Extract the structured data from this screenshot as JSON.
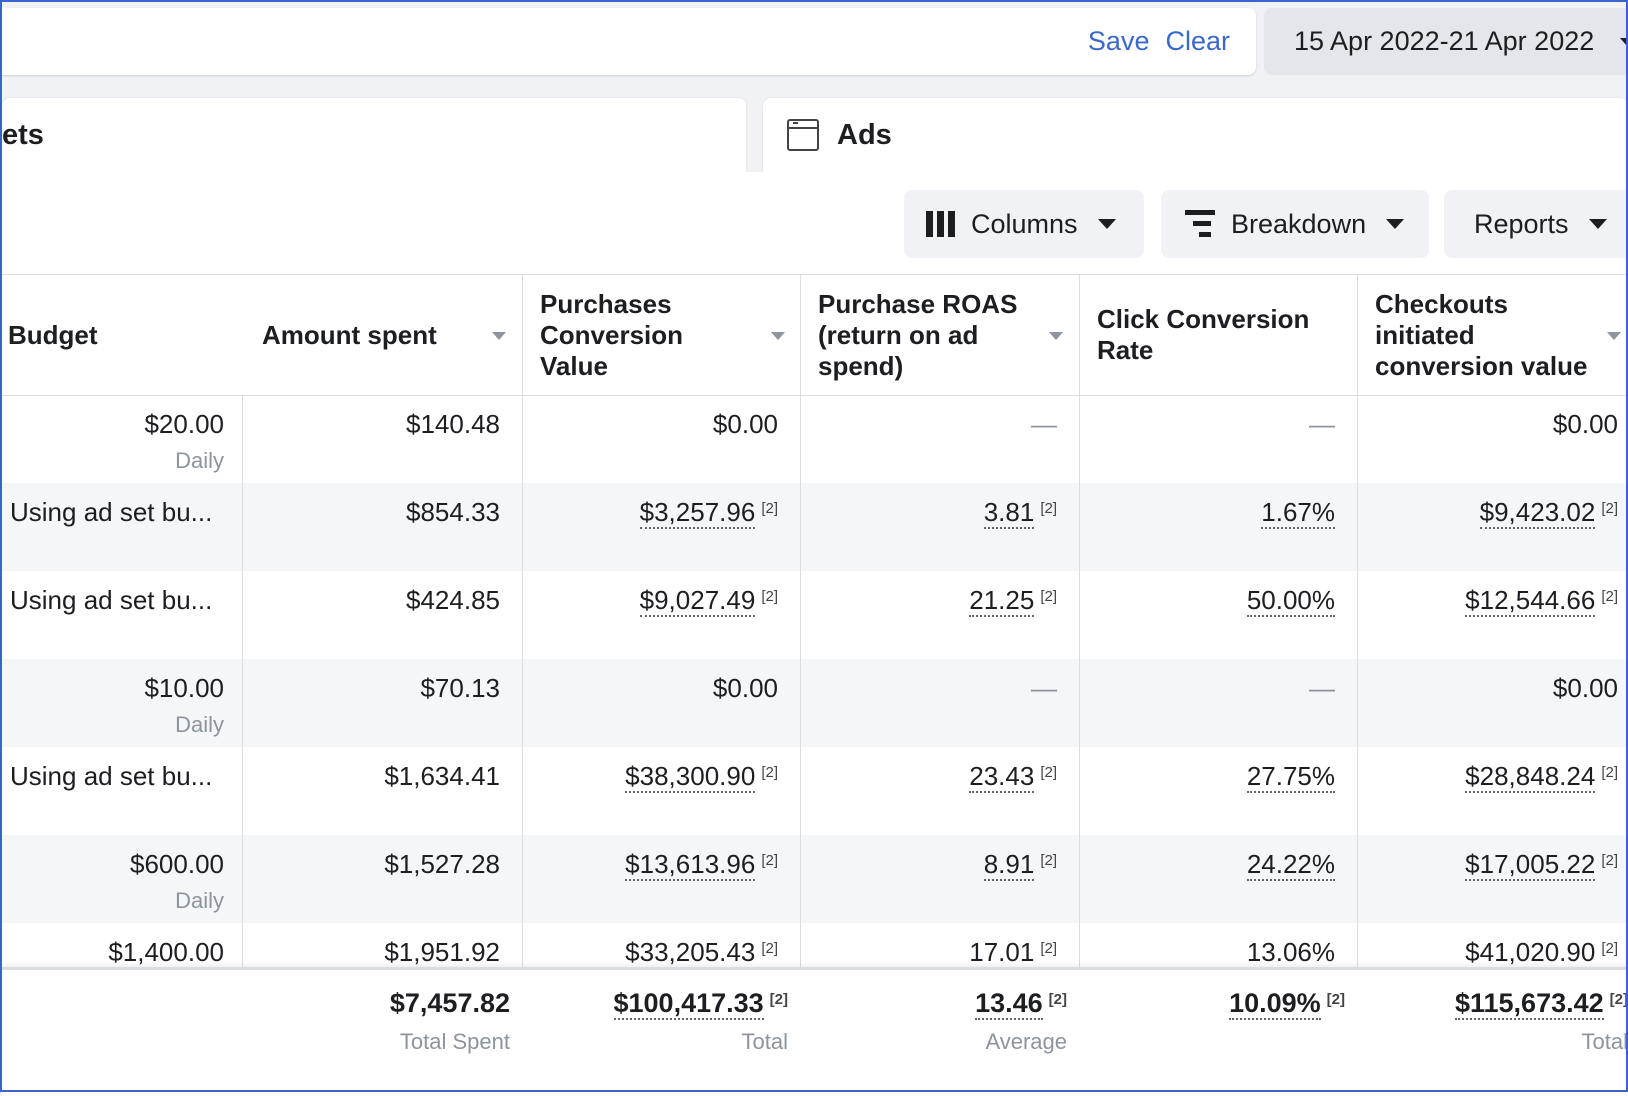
{
  "header": {
    "save_label": "Save",
    "clear_label": "Clear",
    "date_range": "15 Apr 2022-21 Apr 2022"
  },
  "tabs": {
    "adsets_label": "ets",
    "ads_label": "Ads"
  },
  "toolbar": {
    "columns_label": "Columns",
    "breakdown_label": "Breakdown",
    "reports_label": "Reports"
  },
  "table": {
    "headers": {
      "budget": "Budget",
      "amount_spent": "Amount spent",
      "purchases_value": "Purchases Conversion Value",
      "roas": "Purchase ROAS (return on ad spend)",
      "ccr": "Click Conversion Rate",
      "checkouts_value": "Checkouts initiated conversion value"
    },
    "footnote": "[2]",
    "rows": [
      {
        "budget": "$20.00",
        "budget_sub": "Daily",
        "spent": "$140.48",
        "purchases": "$0.00",
        "roas": "—",
        "ccr": "—",
        "checkouts": "$0.00"
      },
      {
        "budget": "Using ad set bu...",
        "budget_sub": "",
        "spent": "$854.33",
        "purchases": "$3,257.96",
        "roas": "3.81",
        "ccr": "1.67%",
        "checkouts": "$9,423.02"
      },
      {
        "budget": "Using ad set bu...",
        "budget_sub": "",
        "spent": "$424.85",
        "purchases": "$9,027.49",
        "roas": "21.25",
        "ccr": "50.00%",
        "checkouts": "$12,544.66"
      },
      {
        "budget": "$10.00",
        "budget_sub": "Daily",
        "spent": "$70.13",
        "purchases": "$0.00",
        "roas": "—",
        "ccr": "—",
        "checkouts": "$0.00"
      },
      {
        "budget": "Using ad set bu...",
        "budget_sub": "",
        "spent": "$1,634.41",
        "purchases": "$38,300.90",
        "roas": "23.43",
        "ccr": "27.75%",
        "checkouts": "$28,848.24"
      },
      {
        "budget": "$600.00",
        "budget_sub": "Daily",
        "spent": "$1,527.28",
        "purchases": "$13,613.96",
        "roas": "8.91",
        "ccr": "24.22%",
        "checkouts": "$17,005.22"
      },
      {
        "budget": "$1,400.00",
        "budget_sub": "",
        "spent": "$1,951.92",
        "purchases": "$33,205.43",
        "roas": "17.01",
        "ccr": "13.06%",
        "checkouts": "$41,020.90"
      }
    ],
    "totals": {
      "spent": "$7,457.82",
      "spent_sub": "Total Spent",
      "purchases": "$100,417.33",
      "purchases_sub": "Total",
      "roas": "13.46",
      "roas_sub": "Average",
      "ccr": "10.09%",
      "checkouts": "$115,673.42",
      "checkouts_sub": "Total"
    }
  }
}
